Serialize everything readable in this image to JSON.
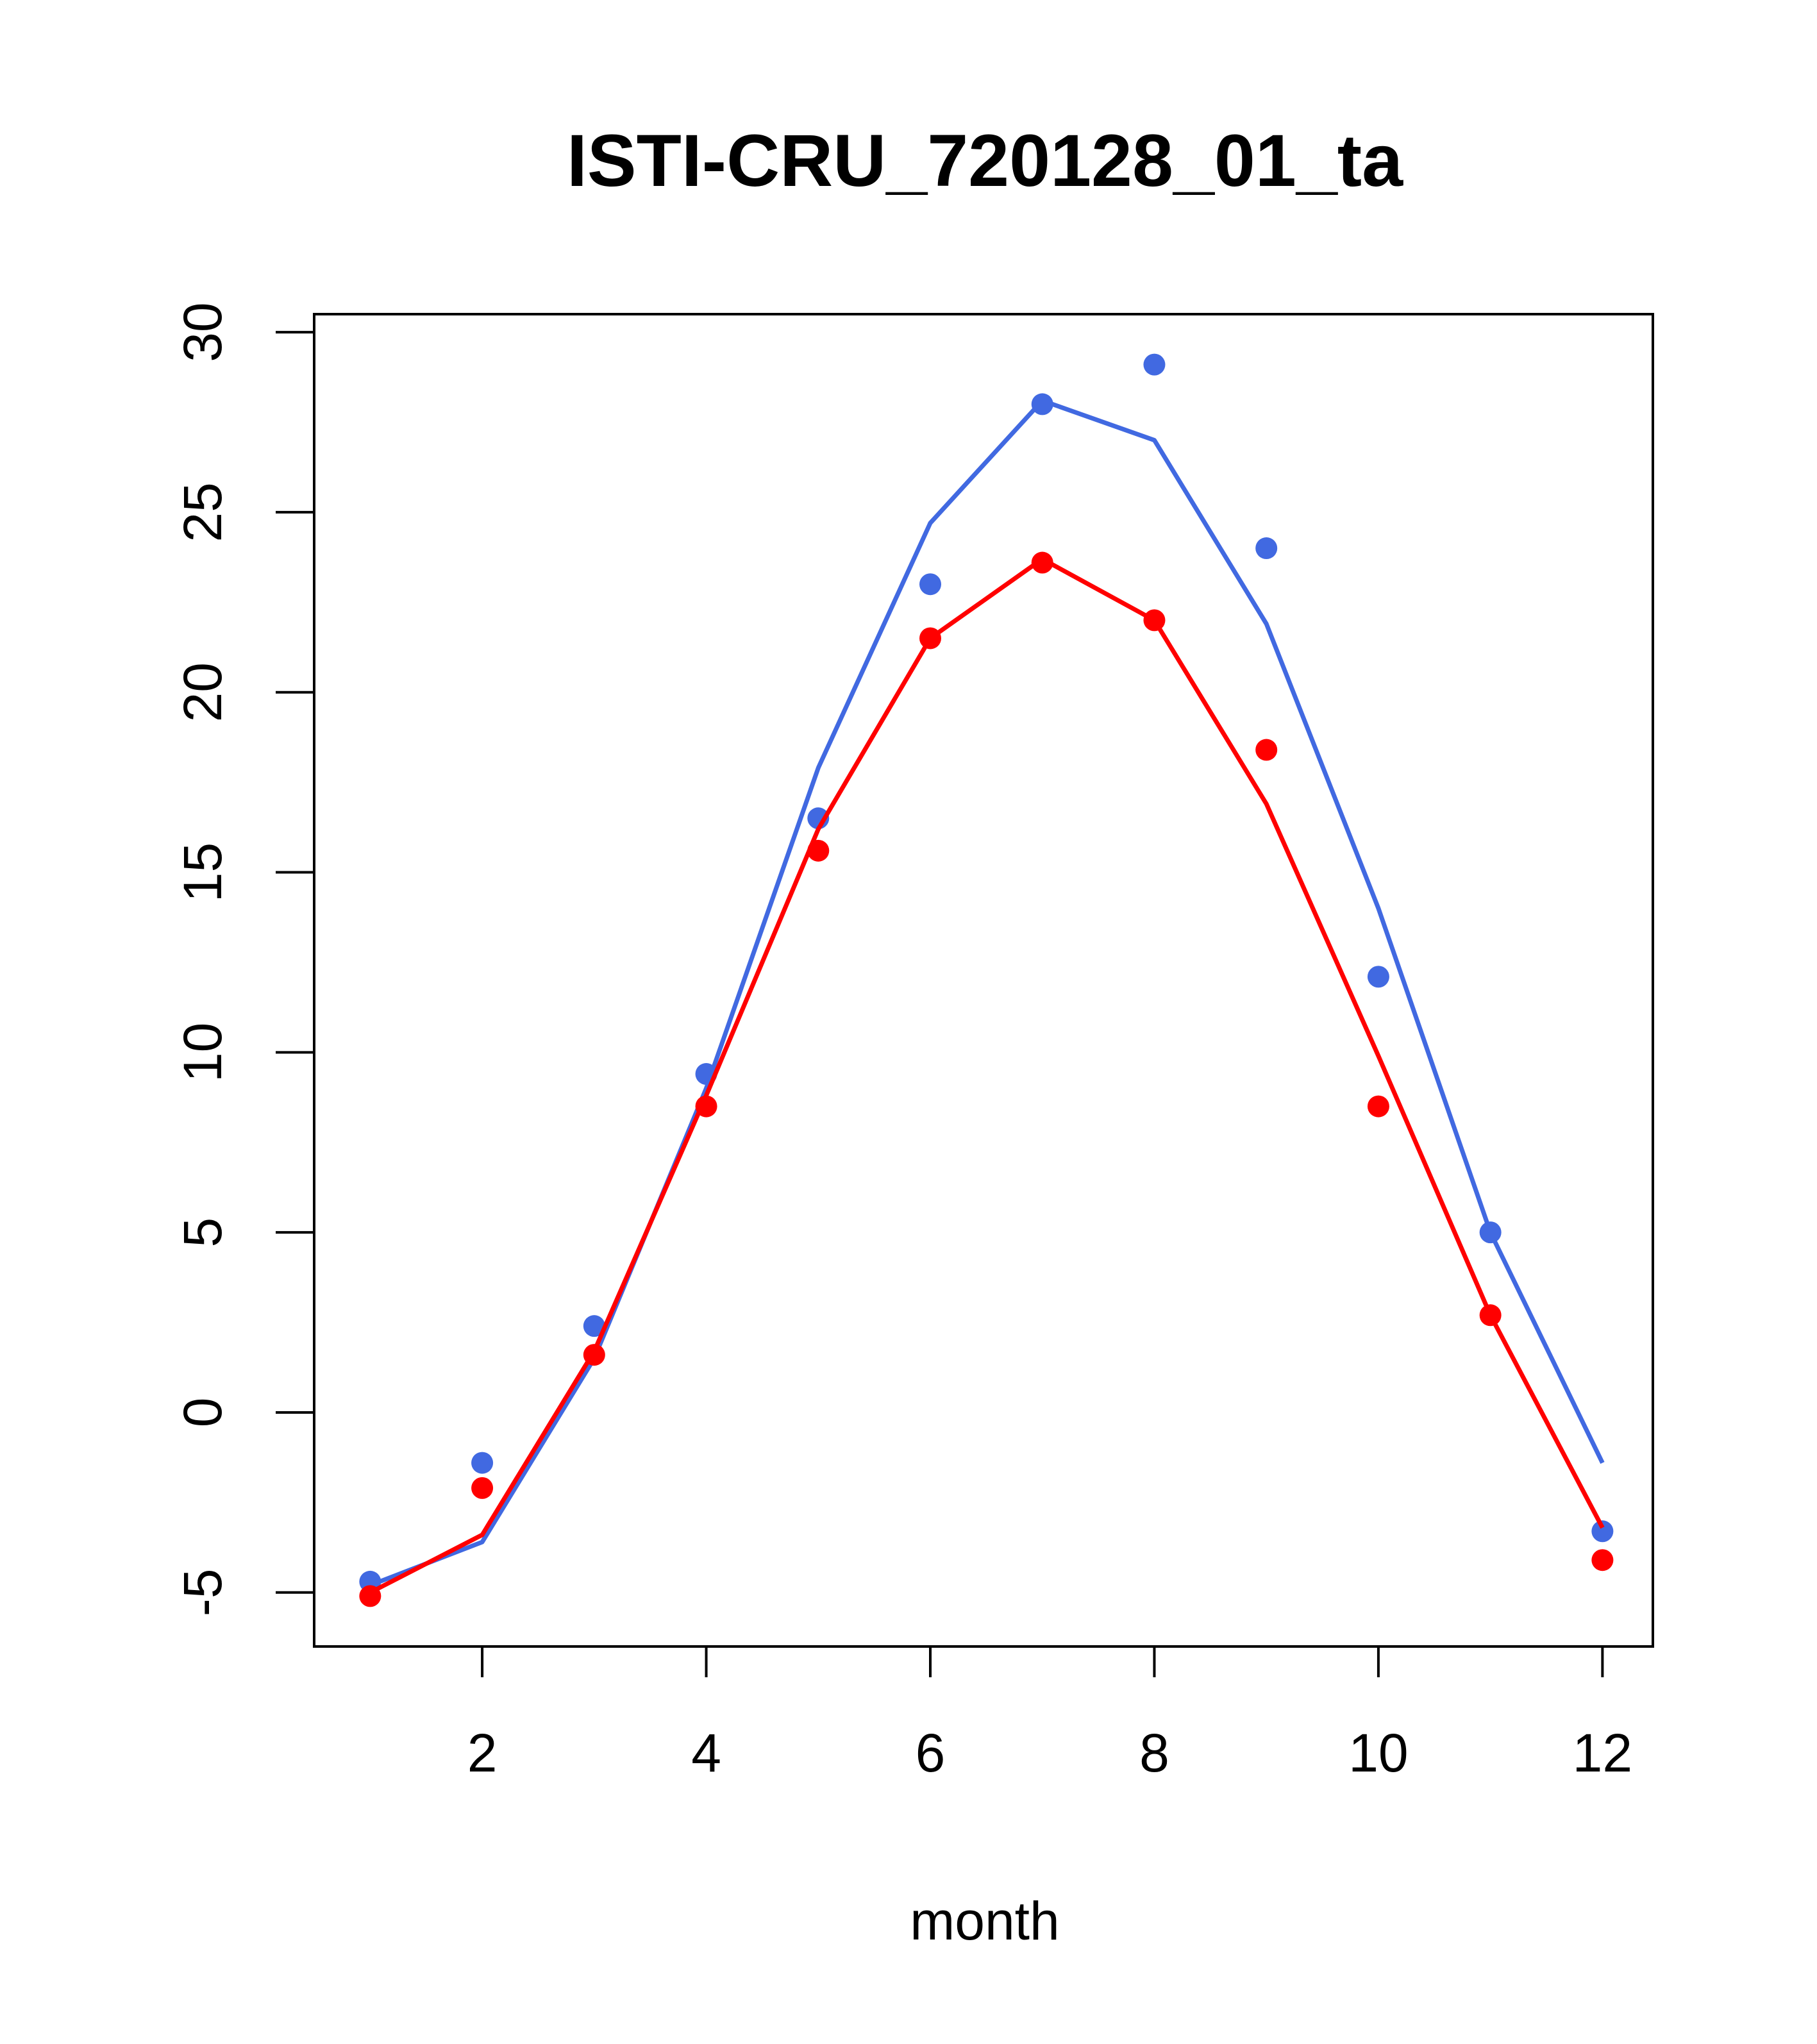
{
  "chart_data": {
    "type": "line",
    "title": "ISTI-CRU_720128_01_ta",
    "xlabel": "month",
    "ylabel": "",
    "xlim": [
      0.5,
      12.45
    ],
    "ylim": [
      -6.5,
      30.5
    ],
    "x_ticks": [
      2,
      4,
      6,
      8,
      10,
      12
    ],
    "y_ticks": [
      -5,
      0,
      5,
      10,
      15,
      20,
      25,
      30
    ],
    "grid": false,
    "series": [
      {
        "color": "#4169E1",
        "points_x": [
          1,
          2,
          3,
          4,
          5,
          6,
          7,
          8,
          9,
          10,
          11,
          12
        ],
        "points_y": [
          -4.7,
          -1.4,
          2.4,
          9.4,
          16.5,
          23.0,
          28.0,
          29.1,
          24.0,
          12.1,
          5.0,
          -3.3
        ],
        "line_x": [
          1,
          2,
          3,
          4,
          5,
          6,
          7,
          8,
          9,
          10,
          11,
          12
        ],
        "line_y": [
          -4.8,
          -3.6,
          1.5,
          9.0,
          17.9,
          24.7,
          28.1,
          27.0,
          21.9,
          14.0,
          5.0,
          -1.4
        ]
      },
      {
        "color": "#FF0000",
        "points_x": [
          1,
          2,
          3,
          4,
          5,
          6,
          7,
          8,
          9,
          10,
          11,
          12
        ],
        "points_y": [
          -5.1,
          -2.1,
          1.6,
          8.5,
          15.6,
          21.5,
          23.6,
          22.0,
          18.4,
          8.5,
          2.7,
          -4.1
        ],
        "line_x": [
          1,
          2,
          3,
          4,
          5,
          6,
          7,
          8,
          9,
          10,
          11,
          12
        ],
        "line_y": [
          -5.0,
          -3.4,
          1.7,
          8.8,
          16.2,
          21.5,
          23.7,
          22.0,
          16.9,
          9.9,
          2.7,
          -3.2
        ]
      }
    ]
  }
}
